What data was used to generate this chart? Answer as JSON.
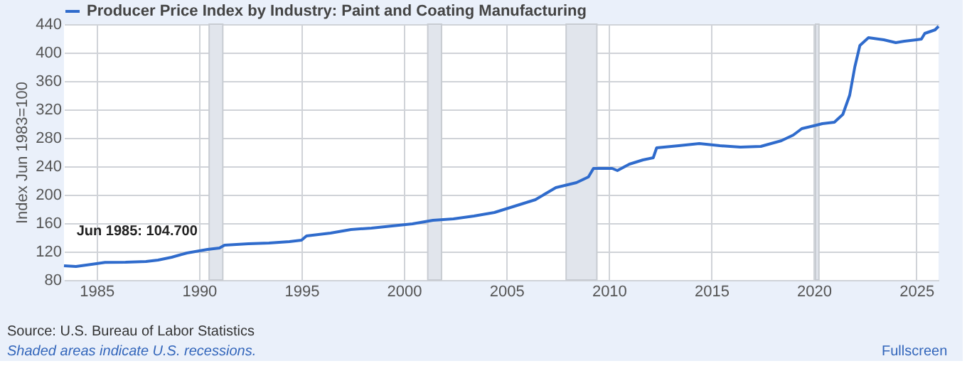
{
  "chart_data": {
    "type": "line",
    "ylabel": "Index Jun 1983=100",
    "x": [
      "1983-06",
      "1984-01",
      "1985-01",
      "1985-06",
      "1986-06",
      "1987-06",
      "1988-01",
      "1988-09",
      "1989-06",
      "1990-06",
      "1991-01",
      "1991-04",
      "1992-06",
      "1993-06",
      "1994-06",
      "1995-01",
      "1995-04",
      "1996-06",
      "1997-06",
      "1998-06",
      "1999-06",
      "2000-06",
      "2001-06",
      "2002-06",
      "2003-06",
      "2004-06",
      "2005-06",
      "2006-06",
      "2007-06",
      "2008-06",
      "2009-01",
      "2009-04",
      "2010-03",
      "2010-06",
      "2011-01",
      "2011-09",
      "2012-03",
      "2012-05",
      "2013-06",
      "2014-06",
      "2015-06",
      "2016-06",
      "2017-06",
      "2018-06",
      "2019-01",
      "2019-06",
      "2020-01",
      "2020-06",
      "2021-01",
      "2021-06",
      "2021-10",
      "2022-01",
      "2022-04",
      "2022-09",
      "2023-06",
      "2024-01",
      "2024-06",
      "2025-01",
      "2025-04",
      "2025-06",
      "2025-12",
      "2026-02"
    ],
    "series": [
      {
        "name": "Producer Price Index by Industry: Paint and Coating Manufacturing",
        "color": "#2f6bcc",
        "values": [
          100,
          99,
          103,
          104.7,
          105,
          106,
          108,
          112,
          118,
          123,
          125,
          129,
          131,
          132,
          134,
          136,
          142,
          146,
          151,
          153,
          156,
          159,
          164,
          166,
          170,
          175,
          184,
          193,
          210,
          217,
          225,
          237,
          237,
          234,
          243,
          249,
          252,
          266,
          269,
          272,
          269,
          267,
          268,
          276,
          284,
          293,
          297,
          300,
          302,
          313,
          340,
          380,
          410,
          421,
          418,
          414,
          416,
          418,
          419,
          427,
          432,
          437
        ]
      }
    ],
    "xlim": [
      "1983-06",
      "2026-02"
    ],
    "xticks": [
      {
        "value": "1985",
        "label": "1985"
      },
      {
        "value": "1990",
        "label": "1990"
      },
      {
        "value": "1995",
        "label": "1995"
      },
      {
        "value": "2000",
        "label": "2000"
      },
      {
        "value": "2005",
        "label": "2005"
      },
      {
        "value": "2010",
        "label": "2010"
      },
      {
        "value": "2015",
        "label": "2015"
      },
      {
        "value": "2020",
        "label": "2020"
      },
      {
        "value": "2025",
        "label": "2025"
      }
    ],
    "ylim": [
      80,
      440
    ],
    "yticks": [
      80,
      120,
      160,
      200,
      240,
      280,
      320,
      360,
      400,
      440
    ],
    "bands": [
      {
        "axis": "x",
        "from": "1990-07",
        "to": "1991-03",
        "color": "#e1e5ec"
      },
      {
        "axis": "x",
        "from": "2001-03",
        "to": "2001-11",
        "color": "#e1e5ec"
      },
      {
        "axis": "x",
        "from": "2007-12",
        "to": "2009-06",
        "color": "#e1e5ec"
      },
      {
        "axis": "x",
        "from": "2020-02",
        "to": "2020-04",
        "color": "#e1e5ec"
      }
    ],
    "annotations": [
      {
        "text": "Jun 1985:  104.700",
        "x": "1985-06",
        "y": 104.7
      },
      "Source: U.S. Bureau of Labor Statistics",
      "Shaded areas indicate U.S. recessions.",
      "Fullscreen"
    ],
    "grid": true,
    "legend": "top left",
    "marker": "none",
    "line_style": "solid"
  }
}
